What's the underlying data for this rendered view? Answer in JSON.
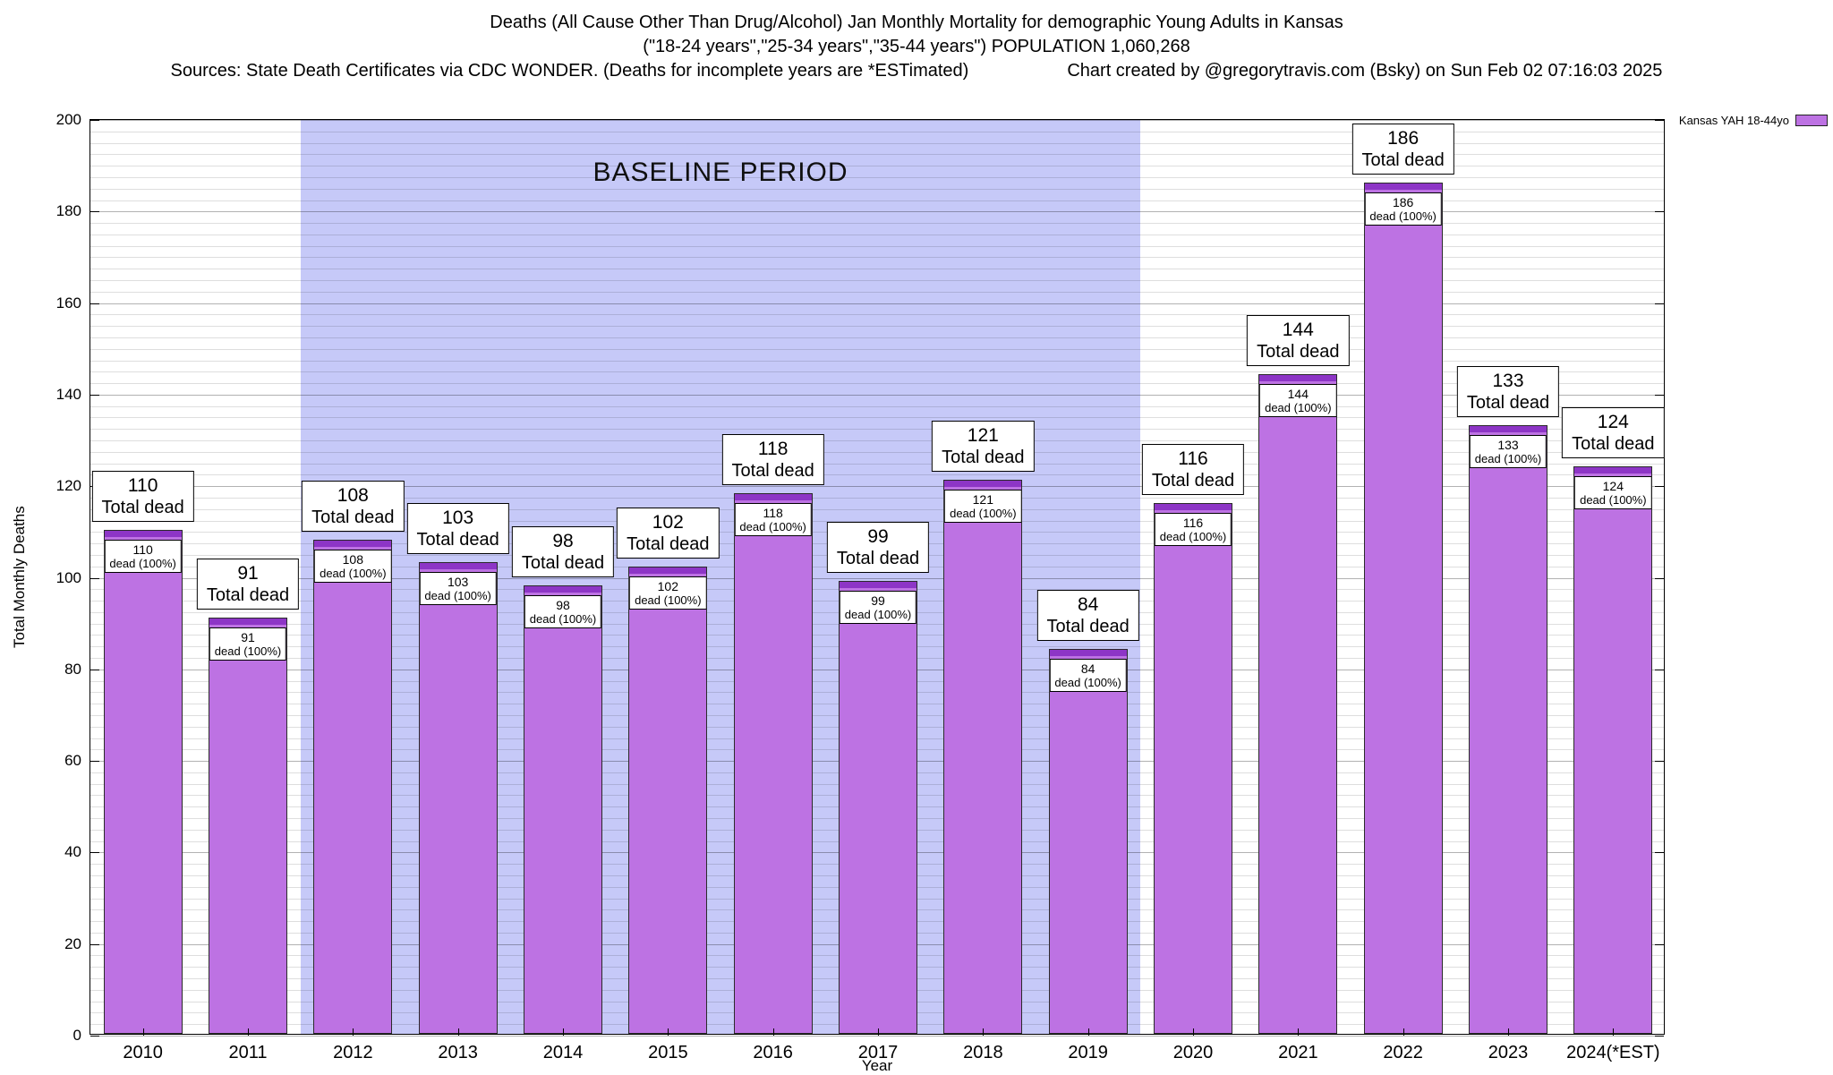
{
  "header": {
    "title_line1": "Deaths (All Cause Other Than Drug/Alcohol) Jan Monthly Mortality for demographic Young Adults in Kansas",
    "title_line2": "(\"18-24 years\",\"25-34 years\",\"35-44 years\") POPULATION 1,060,268",
    "sources": "Sources: State Death Certificates via CDC WONDER. (Deaths for incomplete years are *ESTimated)",
    "credit": "Chart created by @gregorytravis.com (Bsky) on Sun Feb 02 07:16:03 2025"
  },
  "legend": {
    "label": "Kansas YAH 18-44yo",
    "swatch_color": "#bd72e3"
  },
  "chart_data": {
    "type": "bar",
    "title": "Deaths (All Cause Other Than Drug/Alcohol) Jan Monthly Mortality for demographic Young Adults in Kansas",
    "xlabel": "Year",
    "ylabel": "Total Monthly Deaths",
    "ylim": [
      0,
      200
    ],
    "ytick_step": 20,
    "ygrid_minor_step": 2.5,
    "grid": true,
    "legend_position": "top-right",
    "categories": [
      "2010",
      "2011",
      "2012",
      "2013",
      "2014",
      "2015",
      "2016",
      "2017",
      "2018",
      "2019",
      "2020",
      "2021",
      "2022",
      "2023",
      "2024(*EST)"
    ],
    "series": [
      {
        "name": "Kansas YAH 18-44yo",
        "values": [
          110,
          91,
          108,
          103,
          98,
          102,
          118,
          99,
          121,
          84,
          116,
          144,
          186,
          133,
          124
        ]
      }
    ],
    "bar_color": "#bd72e3",
    "bar_cap_color": "#8d35c6",
    "bar_top_label_suffix": "Total dead",
    "bar_inner_label_suffix": "dead (100%)",
    "baseline_region": {
      "start_category": "2012",
      "end_category": "2019",
      "label": "BASELINE PERIOD",
      "fill": "#c6c9f8"
    }
  }
}
